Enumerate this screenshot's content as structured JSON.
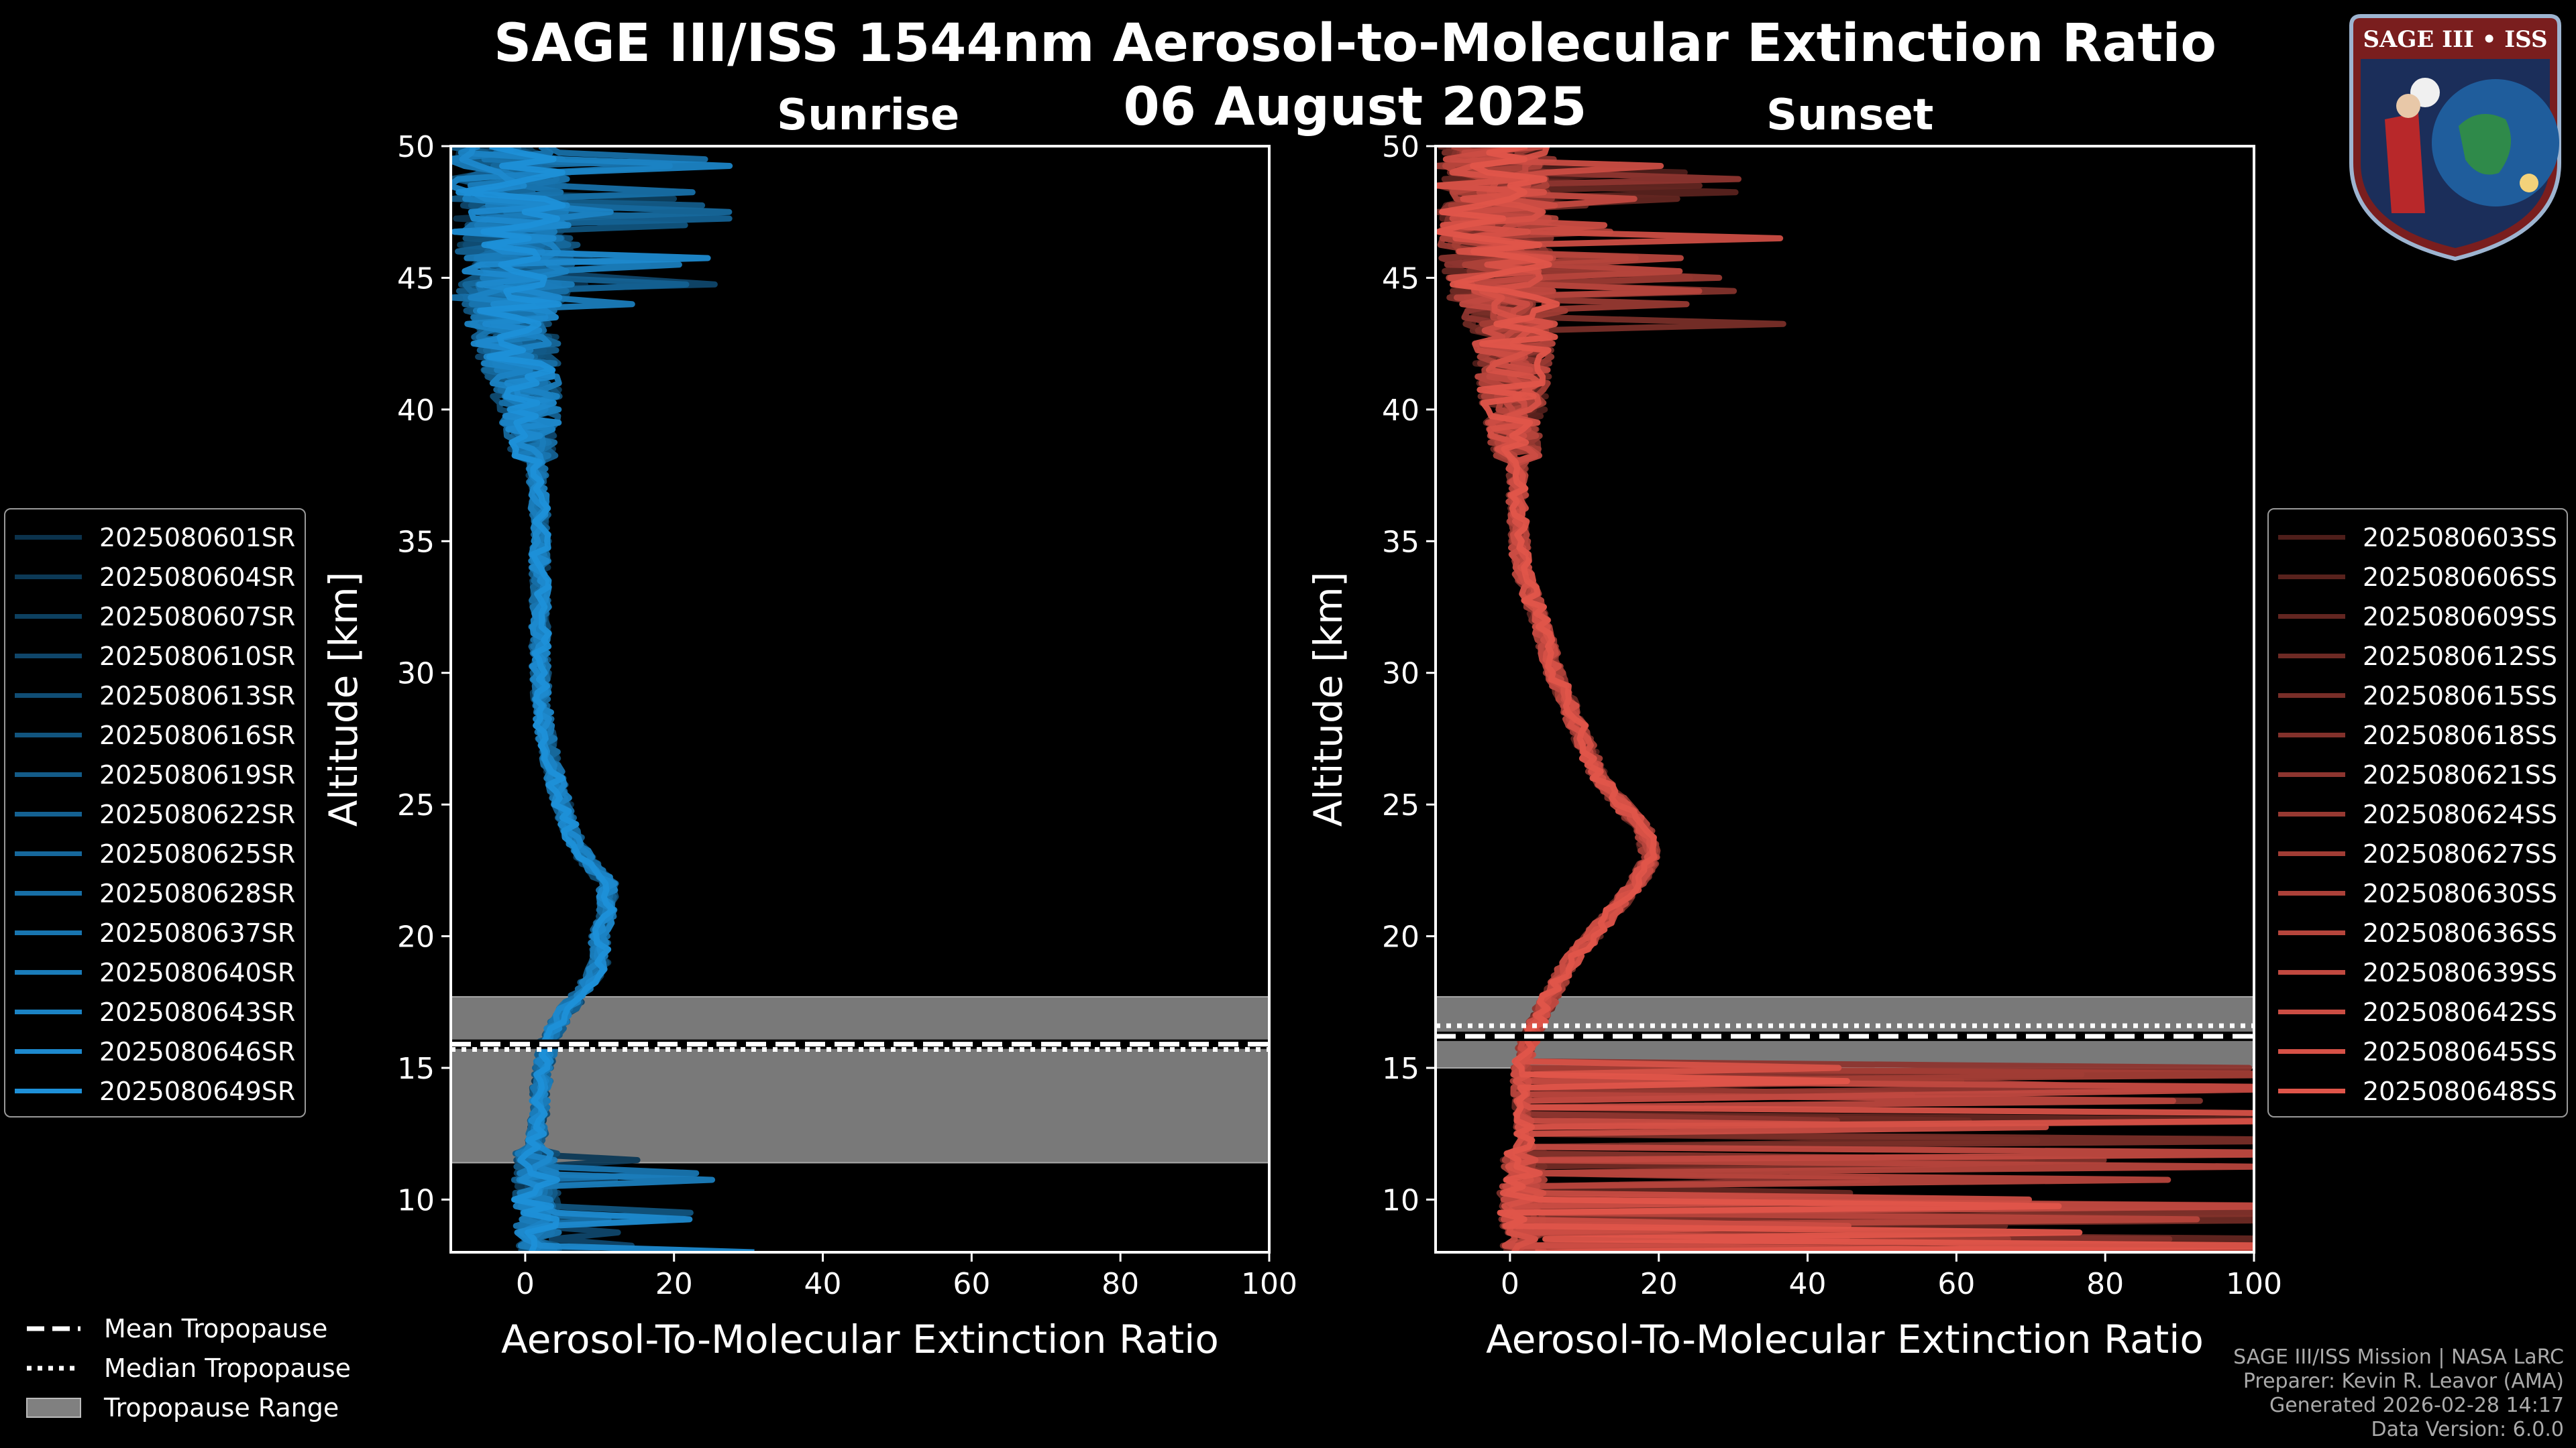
{
  "title": "SAGE III/ISS 1544nm Aerosol-to-Molecular Extinction Ratio",
  "date": "06 August 2025",
  "logo_text": "SAGE III • ISS",
  "colors": {
    "sunrise": "#1e90d8",
    "sunset": "#e0554a",
    "tropo_range": "#808080"
  },
  "footer": {
    "line1": "SAGE III/ISS Mission | NASA LaRC",
    "line2": "Preparer: Kevin R. Leavor (AMA)",
    "line3": "Generated 2026-02-28 14:17",
    "line4": "Data Version: 6.0.0"
  },
  "bottom_legend": {
    "mean": "Mean Tropopause",
    "median": "Median Tropopause",
    "range": "Tropopause Range"
  },
  "chart_data": [
    {
      "type": "line",
      "title": "Sunrise",
      "xlabel": "Aerosol-To-Molecular Extinction Ratio",
      "ylabel": "Altitude [km]",
      "xlim": [
        -10,
        100
      ],
      "ylim": [
        8,
        50
      ],
      "xticks": [
        0,
        20,
        40,
        60,
        80,
        100
      ],
      "yticks": [
        10,
        15,
        20,
        25,
        30,
        35,
        40,
        45,
        50
      ],
      "tropopause": {
        "mean": 15.9,
        "median": 15.7,
        "range": [
          11.4,
          17.7
        ]
      },
      "profile_altitudes": [
        8,
        10,
        12,
        14,
        15,
        16,
        17,
        18,
        19,
        20,
        21,
        22,
        23,
        24,
        25,
        26,
        28,
        30,
        32,
        34,
        36,
        38,
        40,
        42,
        44,
        46,
        48,
        50
      ],
      "median_profile": [
        2,
        1.5,
        1.5,
        2,
        2.5,
        3,
        5,
        8,
        10,
        10,
        11,
        11,
        8,
        6,
        5,
        4,
        2.5,
        2,
        2,
        2,
        2,
        1.5,
        0.5,
        -1,
        -2,
        -1.5,
        -2,
        -3
      ],
      "series": [
        {
          "name": "2025080601SR"
        },
        {
          "name": "2025080604SR"
        },
        {
          "name": "2025080607SR"
        },
        {
          "name": "2025080610SR"
        },
        {
          "name": "2025080613SR"
        },
        {
          "name": "2025080616SR"
        },
        {
          "name": "2025080619SR"
        },
        {
          "name": "2025080622SR"
        },
        {
          "name": "2025080625SR"
        },
        {
          "name": "2025080628SR"
        },
        {
          "name": "2025080637SR"
        },
        {
          "name": "2025080640SR"
        },
        {
          "name": "2025080643SR"
        },
        {
          "name": "2025080646SR"
        },
        {
          "name": "2025080649SR"
        }
      ]
    },
    {
      "type": "line",
      "title": "Sunset",
      "xlabel": "Aerosol-To-Molecular Extinction Ratio",
      "ylabel": "Altitude [km]",
      "xlim": [
        -10,
        100
      ],
      "ylim": [
        8,
        50
      ],
      "xticks": [
        0,
        20,
        40,
        60,
        80,
        100
      ],
      "yticks": [
        10,
        15,
        20,
        25,
        30,
        35,
        40,
        45,
        50
      ],
      "tropopause": {
        "mean": 16.2,
        "median": 16.6,
        "range": [
          15.0,
          17.7
        ]
      },
      "profile_altitudes": [
        8,
        10,
        12,
        14,
        15,
        16,
        17,
        18,
        19,
        20,
        21,
        22,
        23,
        24,
        25,
        26,
        28,
        30,
        32,
        34,
        36,
        38,
        40,
        42,
        44,
        46,
        48,
        50
      ],
      "median_profile": [
        2,
        1.5,
        2,
        1.5,
        1.5,
        2.5,
        4,
        6,
        8,
        11,
        14,
        17,
        19,
        18,
        15,
        12,
        9,
        6,
        4,
        1.5,
        1,
        1,
        0.5,
        0.5,
        0,
        -1.5,
        -2,
        -2
      ],
      "series": [
        {
          "name": "2025080603SS"
        },
        {
          "name": "2025080606SS"
        },
        {
          "name": "2025080609SS"
        },
        {
          "name": "2025080612SS"
        },
        {
          "name": "2025080615SS"
        },
        {
          "name": "2025080618SS"
        },
        {
          "name": "2025080621SS"
        },
        {
          "name": "2025080624SS"
        },
        {
          "name": "2025080627SS"
        },
        {
          "name": "2025080630SS"
        },
        {
          "name": "2025080636SS"
        },
        {
          "name": "2025080639SS"
        },
        {
          "name": "2025080642SS"
        },
        {
          "name": "2025080645SS"
        },
        {
          "name": "2025080648SS"
        }
      ]
    }
  ]
}
